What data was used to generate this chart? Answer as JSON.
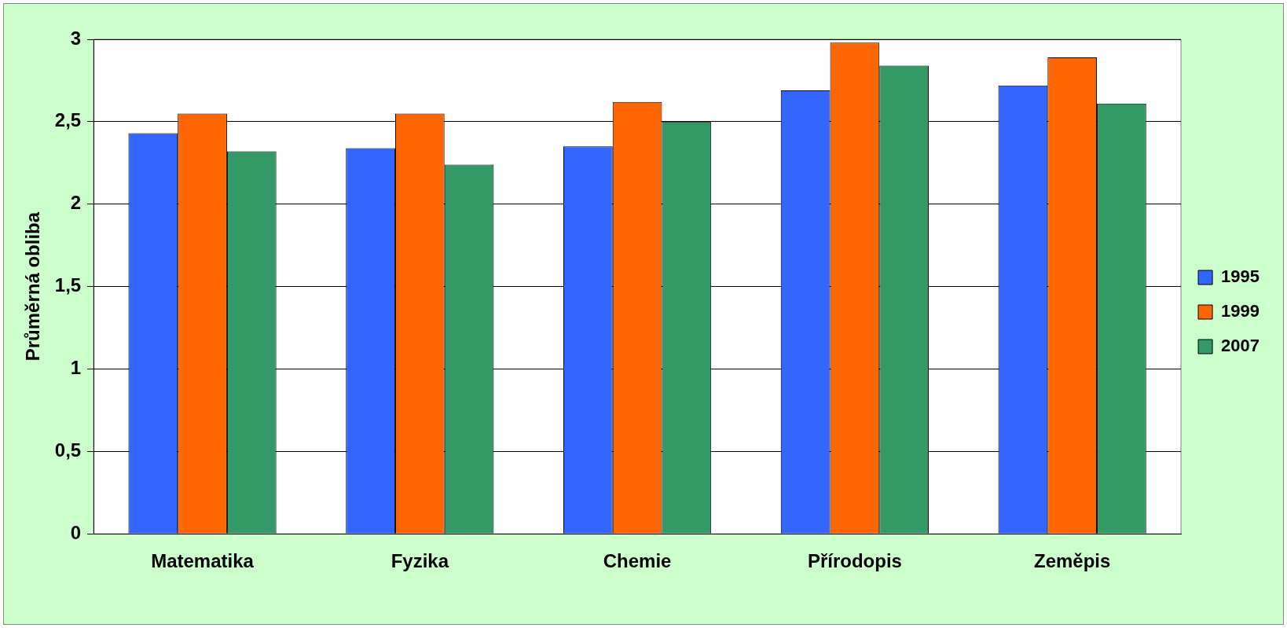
{
  "chart_data": {
    "type": "bar",
    "ylabel": "Průměrná obliba",
    "categories": [
      "Matematika",
      "Fyzika",
      "Chemie",
      "Přírodopis",
      "Zeměpis"
    ],
    "series": [
      {
        "name": "1995",
        "color": "#3366ff",
        "values": [
          2.43,
          2.34,
          2.35,
          2.69,
          2.72
        ]
      },
      {
        "name": "1999",
        "color": "#ff6600",
        "values": [
          2.55,
          2.55,
          2.62,
          2.98,
          2.89
        ]
      },
      {
        "name": "2007",
        "color": "#339966",
        "values": [
          2.32,
          2.24,
          2.5,
          2.84,
          2.61
        ]
      }
    ],
    "ylim": [
      0,
      3
    ],
    "yticks": [
      0,
      {
        "value": 0.5,
        "label": "0,5"
      },
      1,
      {
        "value": 1.5,
        "label": "1,5"
      },
      2,
      {
        "value": 2.5,
        "label": "2,5"
      },
      3
    ],
    "grid": "y",
    "legend": "right"
  }
}
